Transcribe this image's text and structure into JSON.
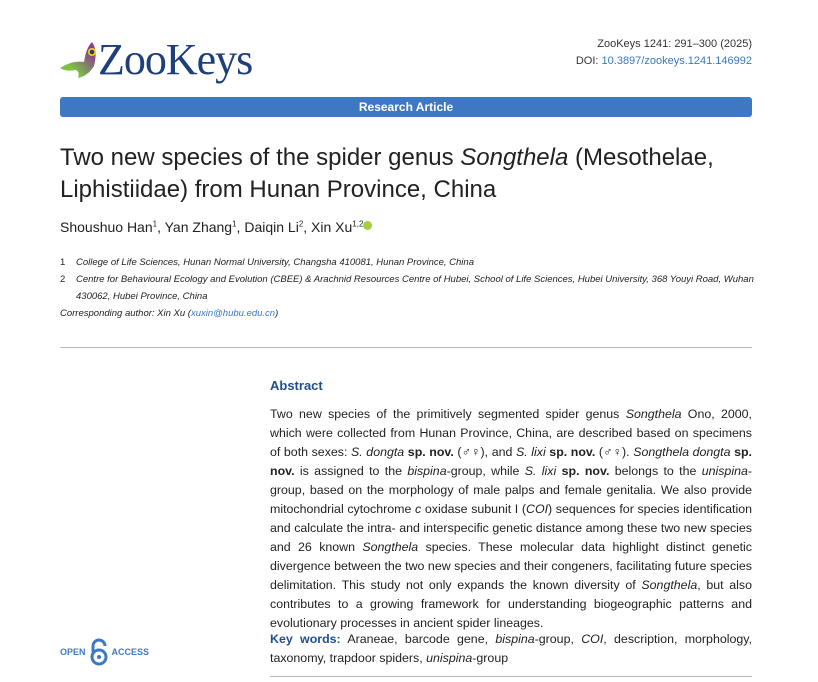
{
  "logo": {
    "text": "ZooKeys"
  },
  "meta": {
    "citation": "ZooKeys 1241: 291–300 (2025)",
    "doi_label": "DOI: ",
    "doi": "10.3897/zookeys.1241.146992"
  },
  "article_type": "Research Article",
  "title": {
    "pre": "Two new species of the spider genus ",
    "genus": "Songthela",
    "post": " (Mesothelae, Liphistiidae) from Hunan Province, China"
  },
  "authors": [
    {
      "name": "Shoushuo Han",
      "aff": "1"
    },
    {
      "name": "Yan Zhang",
      "aff": "1"
    },
    {
      "name": "Daiqin Li",
      "aff": "2"
    },
    {
      "name": "Xin Xu",
      "aff": "1,2"
    }
  ],
  "affiliations": [
    {
      "n": "1",
      "text": "College of Life Sciences, Hunan Normal University, Changsha 410081, Hunan Province, China"
    },
    {
      "n": "2",
      "text": "Centre for Behavioural Ecology and Evolution (CBEE) & Arachnid Resources Centre of Hubei, School of Life Sciences, Hubei University, 368 Youyi Road, Wuhan 430062, Hubei Province, China"
    }
  ],
  "corresponding": {
    "label": "Corresponding author: Xin Xu (",
    "email": "xuxin@hubu.edu.cn",
    "close": ")"
  },
  "abstract": {
    "heading": "Abstract",
    "runs": [
      {
        "t": "Two new species of the primitively segmented spider genus ",
        "s": ""
      },
      {
        "t": "Songthela",
        "s": "i"
      },
      {
        "t": " Ono, 2000, which were collected from Hunan Province, China, are described based on specimens of both sexes: ",
        "s": ""
      },
      {
        "t": "S. dongta",
        "s": "i"
      },
      {
        "t": " ",
        "s": ""
      },
      {
        "t": "sp. nov.",
        "s": "b"
      },
      {
        "t": " (♂♀), and ",
        "s": ""
      },
      {
        "t": "S. lixi",
        "s": "i"
      },
      {
        "t": " ",
        "s": ""
      },
      {
        "t": "sp. nov.",
        "s": "b"
      },
      {
        "t": " (♂♀). ",
        "s": ""
      },
      {
        "t": "Songthela dongta",
        "s": "i"
      },
      {
        "t": " ",
        "s": ""
      },
      {
        "t": "sp. nov.",
        "s": "b"
      },
      {
        "t": " is assigned to the ",
        "s": ""
      },
      {
        "t": "bispina",
        "s": "i"
      },
      {
        "t": "-group, while ",
        "s": ""
      },
      {
        "t": "S. lixi",
        "s": "i"
      },
      {
        "t": " ",
        "s": ""
      },
      {
        "t": "sp. nov.",
        "s": "b"
      },
      {
        "t": " belongs to the ",
        "s": ""
      },
      {
        "t": "unispina",
        "s": "i"
      },
      {
        "t": "-group, based on the morphology of male palps and female genitalia. We also provide mitochondrial cytochrome ",
        "s": ""
      },
      {
        "t": "c",
        "s": "i"
      },
      {
        "t": " oxidase subunit I (",
        "s": ""
      },
      {
        "t": "COI",
        "s": "i"
      },
      {
        "t": ") sequences for species identification and calculate the intra- and interspecific genetic distance among these two new species and 26 known ",
        "s": ""
      },
      {
        "t": "Songthela",
        "s": "i"
      },
      {
        "t": " species. These molecular data highlight distinct genetic divergence between the two new species and their congeners, facilitating future species delimitation. This study not only expands the known diversity of ",
        "s": ""
      },
      {
        "t": "Songthela",
        "s": "i"
      },
      {
        "t": ", but also contributes to a growing framework for understanding biogeographic patterns and evolutionary processes in ancient spider lineages.",
        "s": ""
      }
    ]
  },
  "keywords": {
    "label": "Key words:",
    "runs": [
      {
        "t": " Araneae, barcode gene, ",
        "s": ""
      },
      {
        "t": "bispina",
        "s": "i"
      },
      {
        "t": "-group, ",
        "s": ""
      },
      {
        "t": "COI",
        "s": "i"
      },
      {
        "t": ", description, morphology, taxonomy, trapdoor spiders, ",
        "s": ""
      },
      {
        "t": "unispina",
        "s": "i"
      },
      {
        "t": "-group",
        "s": ""
      }
    ]
  },
  "open_access": {
    "left": "OPEN",
    "right": "ACCESS"
  },
  "colors": {
    "accent": "#3f78c2",
    "heading": "#1f4f8f",
    "orcid": "#a6ce39"
  }
}
